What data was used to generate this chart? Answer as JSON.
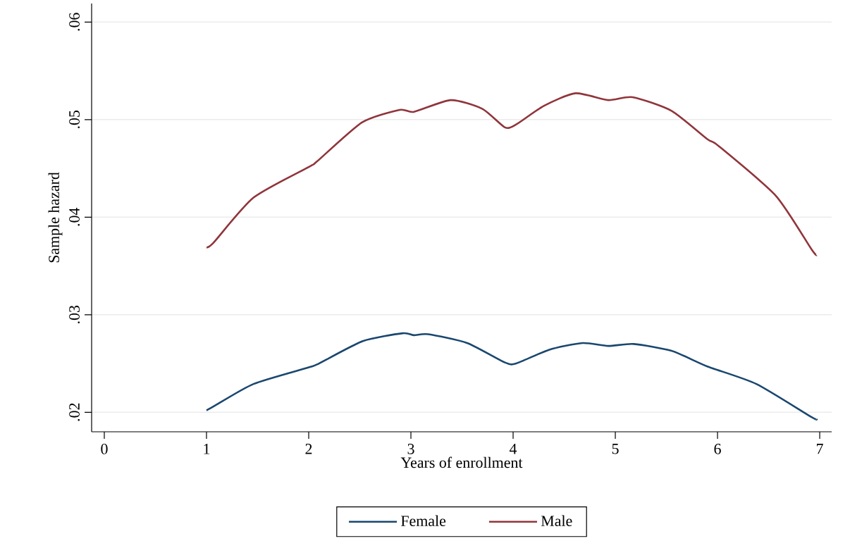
{
  "chart_data": {
    "type": "line",
    "xlabel": "Years of enrollment",
    "ylabel": "Sample hazard",
    "xlim": [
      -0.124,
      7.117
    ],
    "ylim": [
      0.018,
      0.0619
    ],
    "xticks": [
      0,
      1,
      2,
      3,
      4,
      5,
      6,
      7
    ],
    "yticks": [
      {
        "value": 0.02,
        "label": ".02"
      },
      {
        "value": 0.03,
        "label": ".03"
      },
      {
        "value": 0.04,
        "label": ".04"
      },
      {
        "value": 0.05,
        "label": ".05"
      },
      {
        "value": 0.06,
        "label": ".06"
      }
    ],
    "grid": "y",
    "legend": "bottom",
    "line_style": "solid",
    "marker": "none",
    "series": [
      {
        "name": "Female",
        "color": "#1a476f",
        "x": [
          1.0,
          1.07,
          1.46,
          2.0,
          2.1,
          2.53,
          2.92,
          3.03,
          3.17,
          3.55,
          3.92,
          4.03,
          4.35,
          4.68,
          4.93,
          5.18,
          5.55,
          5.9,
          6.38,
          6.92,
          6.97
        ],
        "values": [
          0.0202,
          0.0206,
          0.0229,
          0.0246,
          0.025,
          0.0273,
          0.0281,
          0.0279,
          0.028,
          0.0271,
          0.0251,
          0.025,
          0.0264,
          0.0271,
          0.0268,
          0.027,
          0.0263,
          0.0247,
          0.0229,
          0.0195,
          0.0193
        ]
      },
      {
        "name": "Male",
        "color": "#90353b",
        "x": [
          1.0,
          1.07,
          1.46,
          2.01,
          2.08,
          2.52,
          2.89,
          3.03,
          3.39,
          3.7,
          3.92,
          4.03,
          4.3,
          4.61,
          4.93,
          5.17,
          5.55,
          5.9,
          6.01,
          6.57,
          6.92,
          6.97
        ],
        "values": [
          0.0369,
          0.0374,
          0.042,
          0.0452,
          0.0457,
          0.0497,
          0.051,
          0.0508,
          0.052,
          0.0511,
          0.0492,
          0.0495,
          0.0514,
          0.0527,
          0.052,
          0.0523,
          0.0509,
          0.048,
          0.0473,
          0.0422,
          0.0367,
          0.0361
        ]
      }
    ]
  }
}
